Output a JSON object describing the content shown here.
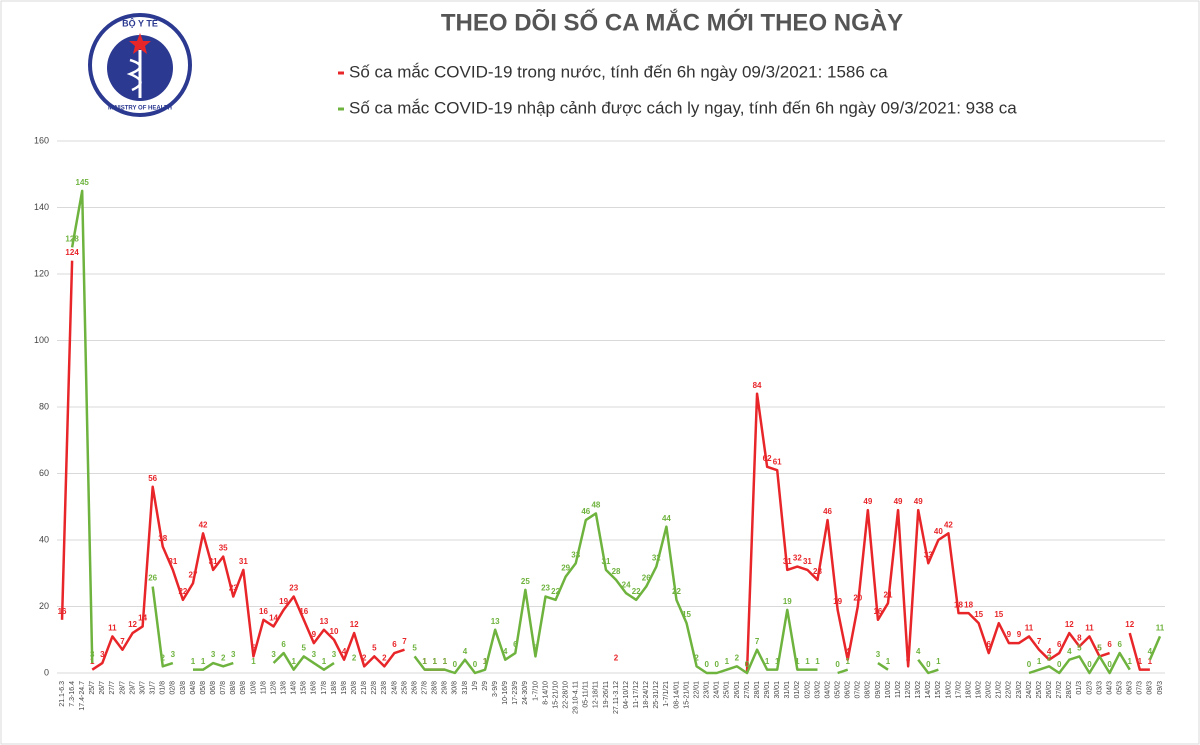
{
  "logo": {
    "top": "BỘ Y TẾ",
    "bottom": "MINISTRY OF HEALTH"
  },
  "chart_data": {
    "type": "line",
    "title": "THEO DÕI SỐ CA MẮC MỚI THEO NGÀY",
    "categories": [
      "21.1-6.3",
      "7.3-16.4",
      "17.4-24.7",
      "25/7",
      "26/7",
      "27/7",
      "28/7",
      "29/7",
      "30/7",
      "31/7",
      "01/8",
      "02/8",
      "03/8",
      "04/8",
      "05/8",
      "06/8",
      "07/8",
      "08/8",
      "09/8",
      "10/8",
      "11/8",
      "12/8",
      "13/8",
      "14/8",
      "15/8",
      "16/8",
      "17/8",
      "18/8",
      "19/8",
      "20/8",
      "21/8",
      "22/8",
      "23/8",
      "24/8",
      "25/8",
      "26/8",
      "27/8",
      "28/8",
      "29/8",
      "30/8",
      "31/8",
      "1/9",
      "2/9",
      "3-9/9",
      "10-16/9",
      "17-23/9",
      "24-30/9",
      "1-7/10",
      "8-14/10",
      "15-21/10",
      "22-28/10",
      "29.10-4.11",
      "05-11/11",
      "12-18/11",
      "19-26/11",
      "27.11-3.12",
      "04-10/12",
      "11-17/12",
      "18-24/12",
      "25-31/12",
      "1-7/1/21",
      "08-14/01",
      "15-21/01",
      "22/01",
      "23/01",
      "24/01",
      "25/01",
      "26/01",
      "27/01",
      "28/01",
      "29/01",
      "30/01",
      "31/01",
      "01/02",
      "02/02",
      "03/02",
      "04/02",
      "05/02",
      "06/02",
      "07/02",
      "08/02",
      "09/02",
      "10/02",
      "11/02",
      "12/02",
      "13/02",
      "14/02",
      "15/02",
      "16/02",
      "17/02",
      "18/02",
      "19/02",
      "20/02",
      "21/02",
      "22/02",
      "23/02",
      "24/02",
      "25/02",
      "26/02",
      "27/02",
      "28/02",
      "01/3",
      "02/3",
      "03/3",
      "04/3",
      "05/3",
      "06/3",
      "07/3",
      "08/3",
      "09/3"
    ],
    "series": [
      {
        "name": "Số ca mắc COVID-19 trong nước, tính đến 6h ngày 09/3/2021: 1586 ca",
        "color": "#e8262a",
        "values": [
          16,
          124,
          null,
          1,
          3,
          11,
          7,
          12,
          14,
          56,
          38,
          31,
          22,
          27,
          42,
          31,
          35,
          23,
          31,
          5,
          16,
          14,
          19,
          23,
          16,
          9,
          13,
          10,
          4,
          12,
          2,
          5,
          2,
          6,
          7,
          null,
          1,
          1,
          1,
          null,
          null,
          null,
          1,
          null,
          null,
          null,
          null,
          null,
          null,
          null,
          null,
          null,
          null,
          null,
          null,
          2,
          null,
          null,
          null,
          null,
          null,
          null,
          null,
          null,
          null,
          null,
          null,
          null,
          0,
          84,
          62,
          61,
          31,
          32,
          31,
          28,
          46,
          19,
          4,
          20,
          49,
          16,
          21,
          49,
          2,
          49,
          33,
          40,
          42,
          18,
          18,
          15,
          6,
          15,
          9,
          9,
          11,
          7,
          4,
          6,
          12,
          8,
          11,
          5,
          6,
          null,
          12,
          1,
          1,
          null
        ]
      },
      {
        "name": "Số ca mắc COVID-19 nhập cảnh được cách ly ngay, tính đến 6h ngày 09/3/2021: 938 ca",
        "color": "#6fb33f",
        "values": [
          null,
          128,
          145,
          3,
          null,
          null,
          null,
          null,
          null,
          26,
          2,
          3,
          null,
          1,
          1,
          3,
          2,
          3,
          null,
          1,
          null,
          3,
          6,
          1,
          5,
          3,
          1,
          3,
          null,
          2,
          null,
          null,
          null,
          null,
          null,
          5,
          1,
          1,
          1,
          0,
          4,
          0,
          1,
          13,
          4,
          6,
          25,
          5,
          23,
          22,
          29,
          33,
          46,
          48,
          31,
          28,
          24,
          22,
          26,
          32,
          44,
          22,
          15,
          2,
          0,
          0,
          1,
          2,
          0,
          7,
          1,
          1,
          19,
          1,
          1,
          1,
          null,
          0,
          1,
          null,
          null,
          3,
          1,
          null,
          null,
          4,
          0,
          1,
          null,
          null,
          null,
          null,
          null,
          null,
          null,
          null,
          0,
          1,
          2,
          0,
          4,
          5,
          0,
          5,
          0,
          6,
          1,
          null,
          4,
          11
        ]
      }
    ],
    "ylim": [
      0,
      160
    ],
    "yticks": [
      0,
      20,
      40,
      60,
      80,
      100,
      120,
      140,
      160
    ],
    "grid": true
  }
}
